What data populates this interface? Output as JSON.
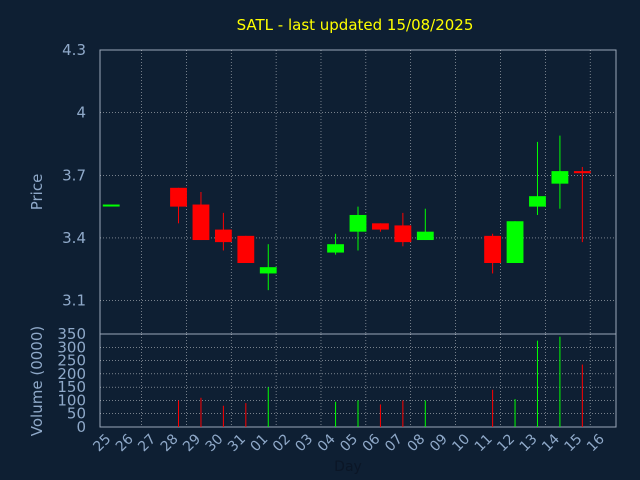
{
  "chart_data": {
    "type": "candlestick",
    "title": "SATL - last updated 15/08/2025",
    "x_label": "Day",
    "categories": [
      "25",
      "26",
      "27",
      "28",
      "29",
      "30",
      "31",
      "01",
      "02",
      "03",
      "04",
      "05",
      "06",
      "07",
      "08",
      "09",
      "10",
      "11",
      "12",
      "13",
      "14",
      "15",
      "16"
    ],
    "price_panel": {
      "ylabel": "Price",
      "ylim": [
        2.94,
        4.3
      ],
      "yticks": [
        "4.3",
        "4",
        "3.7",
        "3.4",
        "3.1"
      ],
      "ytick_values": [
        4.3,
        4.0,
        3.7,
        3.4,
        3.1
      ],
      "grid": true,
      "candles": [
        {
          "day": "25",
          "open": 3.56,
          "close": 3.56,
          "high": 3.56,
          "low": 3.56,
          "direction": "up"
        },
        {
          "day": "28",
          "open": 3.64,
          "close": 3.55,
          "high": 3.64,
          "low": 3.47,
          "direction": "down"
        },
        {
          "day": "29",
          "open": 3.56,
          "close": 3.39,
          "high": 3.62,
          "low": 3.39,
          "direction": "down"
        },
        {
          "day": "30",
          "open": 3.44,
          "close": 3.38,
          "high": 3.52,
          "low": 3.34,
          "direction": "down"
        },
        {
          "day": "31",
          "open": 3.41,
          "close": 3.28,
          "high": 3.41,
          "low": 3.28,
          "direction": "down"
        },
        {
          "day": "01",
          "open": 3.23,
          "close": 3.26,
          "high": 3.37,
          "low": 3.15,
          "direction": "up"
        },
        {
          "day": "04",
          "open": 3.33,
          "close": 3.37,
          "high": 3.42,
          "low": 3.32,
          "direction": "up"
        },
        {
          "day": "05",
          "open": 3.43,
          "close": 3.51,
          "high": 3.55,
          "low": 3.34,
          "direction": "up"
        },
        {
          "day": "06",
          "open": 3.47,
          "close": 3.44,
          "high": 3.47,
          "low": 3.43,
          "direction": "down"
        },
        {
          "day": "07",
          "open": 3.46,
          "close": 3.38,
          "high": 3.52,
          "low": 3.36,
          "direction": "down"
        },
        {
          "day": "08",
          "open": 3.39,
          "close": 3.43,
          "high": 3.54,
          "low": 3.39,
          "direction": "up"
        },
        {
          "day": "11",
          "open": 3.41,
          "close": 3.28,
          "high": 3.42,
          "low": 3.23,
          "direction": "down"
        },
        {
          "day": "12",
          "open": 3.28,
          "close": 3.48,
          "high": 3.48,
          "low": 3.28,
          "direction": "up"
        },
        {
          "day": "13",
          "open": 3.55,
          "close": 3.6,
          "high": 3.86,
          "low": 3.51,
          "direction": "up"
        },
        {
          "day": "14",
          "open": 3.66,
          "close": 3.72,
          "high": 3.89,
          "low": 3.54,
          "direction": "up"
        },
        {
          "day": "15",
          "open": 3.72,
          "close": 3.71,
          "high": 3.74,
          "low": 3.38,
          "direction": "down"
        }
      ]
    },
    "volume_panel": {
      "ylabel": "Volume (0000)",
      "ylim": [
        0,
        350
      ],
      "yticks": [
        "350",
        "300",
        "250",
        "200",
        "150",
        "100",
        "50",
        "0"
      ],
      "ytick_values": [
        350,
        300,
        250,
        200,
        150,
        100,
        50,
        0
      ],
      "bars": [
        {
          "day": "28",
          "volume": 100,
          "direction": "down"
        },
        {
          "day": "29",
          "volume": 110,
          "direction": "down"
        },
        {
          "day": "30",
          "volume": 80,
          "direction": "down"
        },
        {
          "day": "31",
          "volume": 90,
          "direction": "down"
        },
        {
          "day": "01",
          "volume": 150,
          "direction": "up"
        },
        {
          "day": "04",
          "volume": 95,
          "direction": "up"
        },
        {
          "day": "05",
          "volume": 100,
          "direction": "up"
        },
        {
          "day": "06",
          "volume": 85,
          "direction": "down"
        },
        {
          "day": "07",
          "volume": 100,
          "direction": "down"
        },
        {
          "day": "08",
          "volume": 100,
          "direction": "up"
        },
        {
          "day": "11",
          "volume": 140,
          "direction": "down"
        },
        {
          "day": "12",
          "volume": 105,
          "direction": "up"
        },
        {
          "day": "13",
          "volume": 325,
          "direction": "up"
        },
        {
          "day": "14",
          "volume": 340,
          "direction": "up"
        },
        {
          "day": "15",
          "volume": 235,
          "direction": "down"
        }
      ]
    },
    "colors": {
      "background": "#0e1f33",
      "up": "#00ff00",
      "down": "#ff0000",
      "axis_text": "#8fa9c9",
      "title": "#ffff00",
      "grid": "#ffffff",
      "frame": "#9aa7b8"
    }
  }
}
